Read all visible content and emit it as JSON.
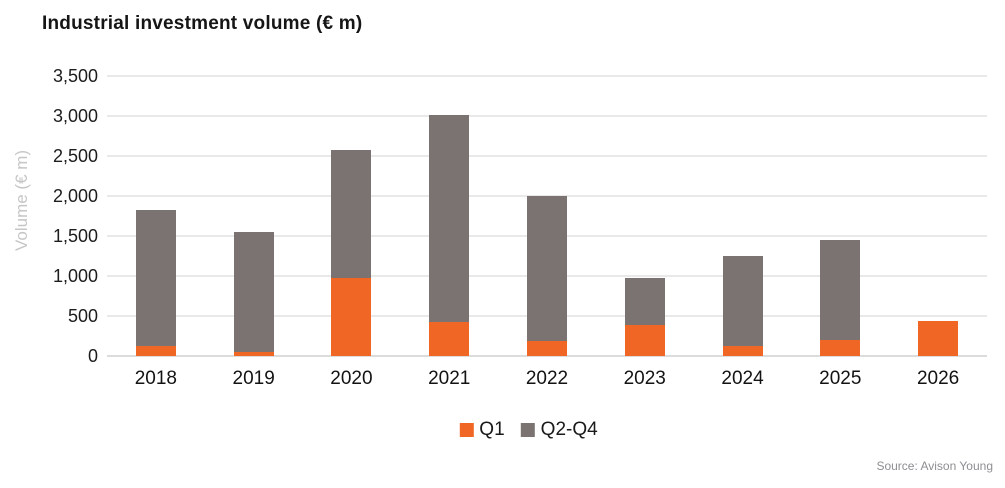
{
  "title": "Industrial investment volume (€ m)",
  "source_note": "Source: Avison Young",
  "colors": {
    "q1": "#F06624",
    "q2_q4": "#7A7372",
    "gridline": "#E9E9E9",
    "zero_line": "#DCDCDC",
    "axis_text": "#1A1A1A",
    "y_axis_title_text": "#C6C6C6",
    "source_text": "#8E8E93"
  },
  "chart_data": {
    "type": "bar",
    "stacked": true,
    "title": "Industrial investment volume (€ m)",
    "ylabel": "Volume (€ m)",
    "xlabel": "",
    "categories": [
      "2018",
      "2019",
      "2020",
      "2021",
      "2022",
      "2023",
      "2024",
      "2025",
      "2026"
    ],
    "series": [
      {
        "name": "Q1",
        "color": "#F06624",
        "values": [
          130,
          50,
          980,
          420,
          190,
          390,
          130,
          200,
          440
        ]
      },
      {
        "name": "Q2-Q4",
        "color": "#7A7372",
        "values": [
          1700,
          1500,
          1600,
          2590,
          1810,
          590,
          1120,
          1250,
          0
        ]
      }
    ],
    "totals": [
      1830,
      1550,
      2580,
      3010,
      2000,
      980,
      1250,
      1450,
      440
    ],
    "ylim": [
      0,
      3500
    ],
    "yticks": [
      {
        "value": 0,
        "label": "0"
      },
      {
        "value": 500,
        "label": "500"
      },
      {
        "value": 1000,
        "label": "1,000"
      },
      {
        "value": 1500,
        "label": "1,500"
      },
      {
        "value": 2000,
        "label": "2,000"
      },
      {
        "value": 2500,
        "label": "2,500"
      },
      {
        "value": 3000,
        "label": "3,000"
      },
      {
        "value": 3500,
        "label": "3,500"
      }
    ],
    "grid": true,
    "legend_position": "bottom"
  }
}
